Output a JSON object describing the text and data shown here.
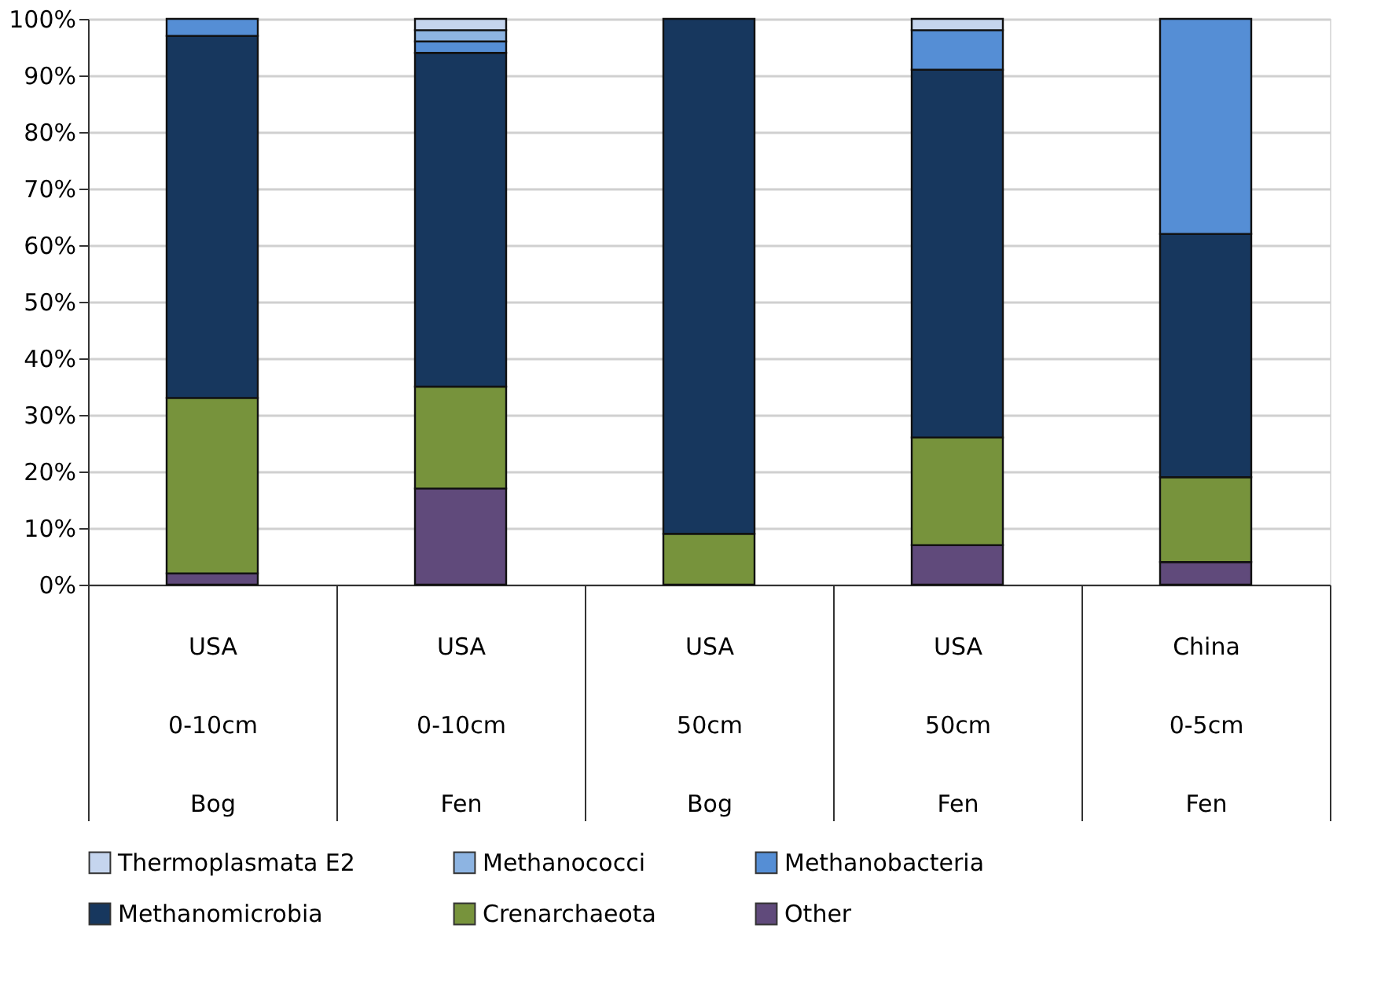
{
  "chart_data": {
    "type": "bar",
    "stacked": true,
    "categories": [
      "USA\n0-10cm\nBog",
      "USA\n0-10cm\nFen",
      "USA\n50cm\nBog",
      "USA\n50cm\nFen",
      "China\n0-5cm\nFen"
    ],
    "series": [
      {
        "name": "Other",
        "color": "#604a7b",
        "values": [
          2,
          17,
          0,
          7,
          4
        ]
      },
      {
        "name": "Crenarchaeota",
        "color": "#77933c",
        "values": [
          31,
          18,
          9,
          19,
          15
        ]
      },
      {
        "name": "Methanomicrobia",
        "color": "#17375e",
        "values": [
          64,
          59,
          91,
          65,
          43
        ]
      },
      {
        "name": "Methanobacteria",
        "color": "#558ed5",
        "values": [
          3,
          2,
          0,
          7,
          38
        ]
      },
      {
        "name": "Methanococci",
        "color": "#8db4e2",
        "values": [
          0,
          2,
          0,
          0,
          0
        ]
      },
      {
        "name": "Thermoplasmata E2",
        "color": "#c5d5ee",
        "values": [
          0,
          2,
          0,
          2,
          0
        ]
      }
    ],
    "ylim": [
      0,
      100
    ],
    "yticks": [
      {
        "value": 0,
        "label": "0%"
      },
      {
        "value": 10,
        "label": "10%"
      },
      {
        "value": 20,
        "label": "20%"
      },
      {
        "value": 30,
        "label": "30%"
      },
      {
        "value": 40,
        "label": "40%"
      },
      {
        "value": 50,
        "label": "50%"
      },
      {
        "value": 60,
        "label": "60%"
      },
      {
        "value": 70,
        "label": "70%"
      },
      {
        "value": 80,
        "label": "80%"
      },
      {
        "value": 90,
        "label": "90%"
      },
      {
        "value": 100,
        "label": "100%"
      }
    ],
    "grid": "y",
    "legend": "bottom"
  }
}
